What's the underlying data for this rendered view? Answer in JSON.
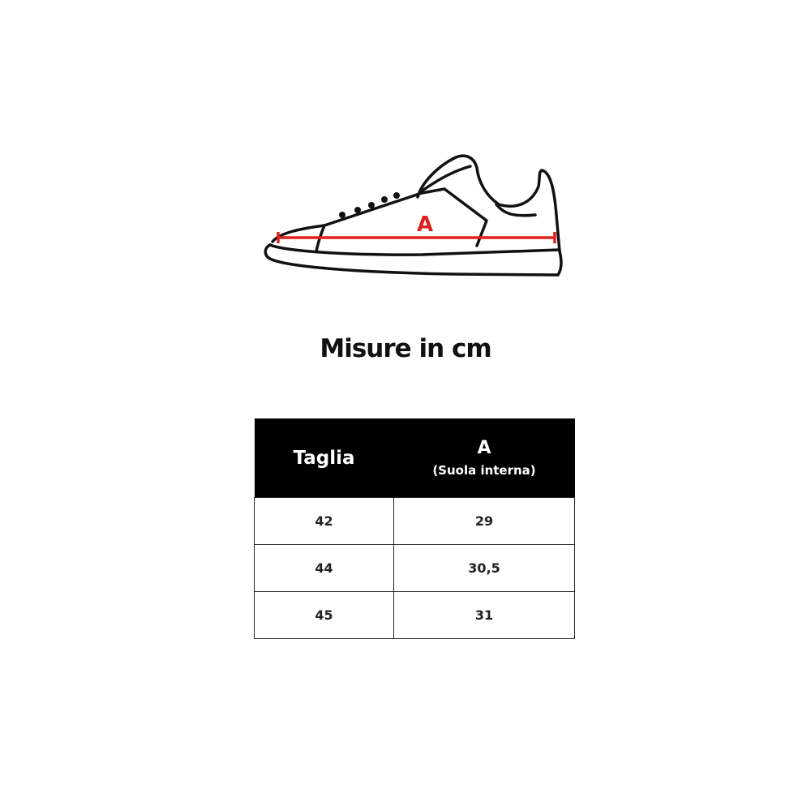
{
  "diagram": {
    "measure_label": "A",
    "measure_color": "#e02020"
  },
  "title": "Misure in cm",
  "table": {
    "headers": [
      {
        "label": "Taglia"
      },
      {
        "label": "A",
        "sub": "(Suola interna)"
      }
    ],
    "rows": [
      [
        "42",
        "29"
      ],
      [
        "44",
        "30,5"
      ],
      [
        "45",
        "31"
      ]
    ]
  }
}
